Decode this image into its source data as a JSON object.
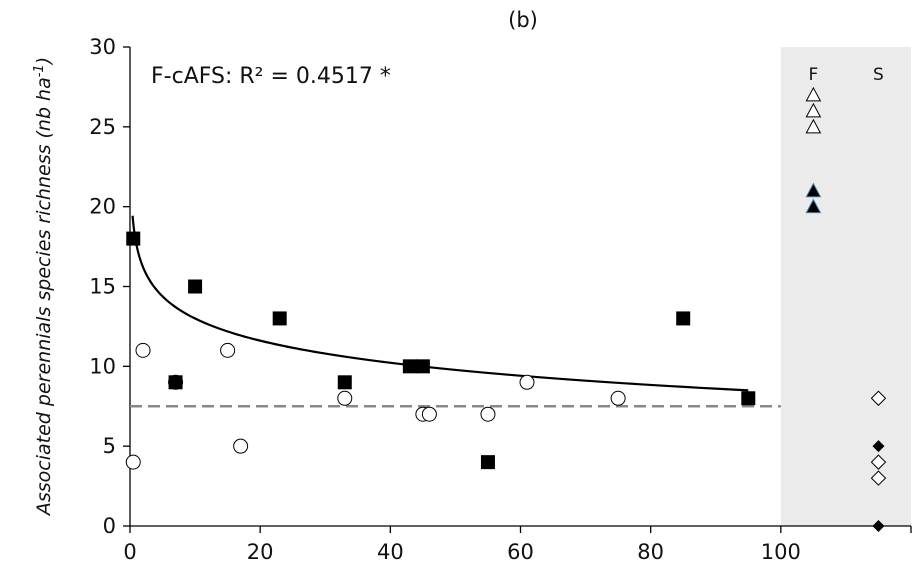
{
  "chart_data": {
    "type": "scatter",
    "title": "(b)",
    "ylabel": "Associated perennials species richness",
    "ylabel_unit": "(nb ha",
    "ylabel_unit_exp": "-1",
    "ylabel_unit_close": ")",
    "xlabel": "",
    "xlim": [
      0,
      120
    ],
    "ylim": [
      0,
      30
    ],
    "x_ticks": [
      0,
      20,
      40,
      60,
      80,
      100
    ],
    "y_ticks": [
      0,
      5,
      10,
      15,
      20,
      25,
      30
    ],
    "grid": false,
    "annotation": "F-cAFS: R² = 0.4517 *",
    "series": [
      {
        "marker": "square-filled",
        "points": [
          [
            0.5,
            18
          ],
          [
            7,
            9
          ],
          [
            10,
            15
          ],
          [
            23,
            13
          ],
          [
            33,
            9
          ],
          [
            43,
            10
          ],
          [
            45,
            10
          ],
          [
            55,
            4
          ],
          [
            85,
            13
          ],
          [
            95,
            8
          ]
        ]
      },
      {
        "marker": "circle-open",
        "points": [
          [
            0.5,
            4
          ],
          [
            2,
            11
          ],
          [
            7,
            9
          ],
          [
            15,
            11
          ],
          [
            17,
            5
          ],
          [
            33,
            8
          ],
          [
            45,
            7
          ],
          [
            46,
            7
          ],
          [
            55,
            7
          ],
          [
            61,
            9
          ],
          [
            75,
            8
          ]
        ]
      }
    ],
    "trendline": {
      "type": "log",
      "a": 17.6,
      "b": -2.0,
      "x_start": 0.4,
      "x_end": 95
    },
    "reference_line": {
      "y": 7.5,
      "x_end": 100,
      "style": "dashed",
      "color": "#888888"
    },
    "reference_panel": {
      "x_start": 100,
      "background": "#ebebeb",
      "labels": [
        "F",
        "S"
      ],
      "columns": [
        {
          "label": "F",
          "x": 105,
          "groups": [
            {
              "marker": "triangle-open",
              "values": [
                25,
                26,
                27
              ]
            },
            {
              "marker": "triangle-filled",
              "values": [
                20,
                21
              ]
            }
          ]
        },
        {
          "label": "S",
          "x": 115,
          "groups": [
            {
              "marker": "diamond-open",
              "values": [
                8,
                4,
                3
              ]
            },
            {
              "marker": "diamond-filled",
              "values": [
                5,
                0
              ]
            }
          ]
        }
      ]
    }
  }
}
